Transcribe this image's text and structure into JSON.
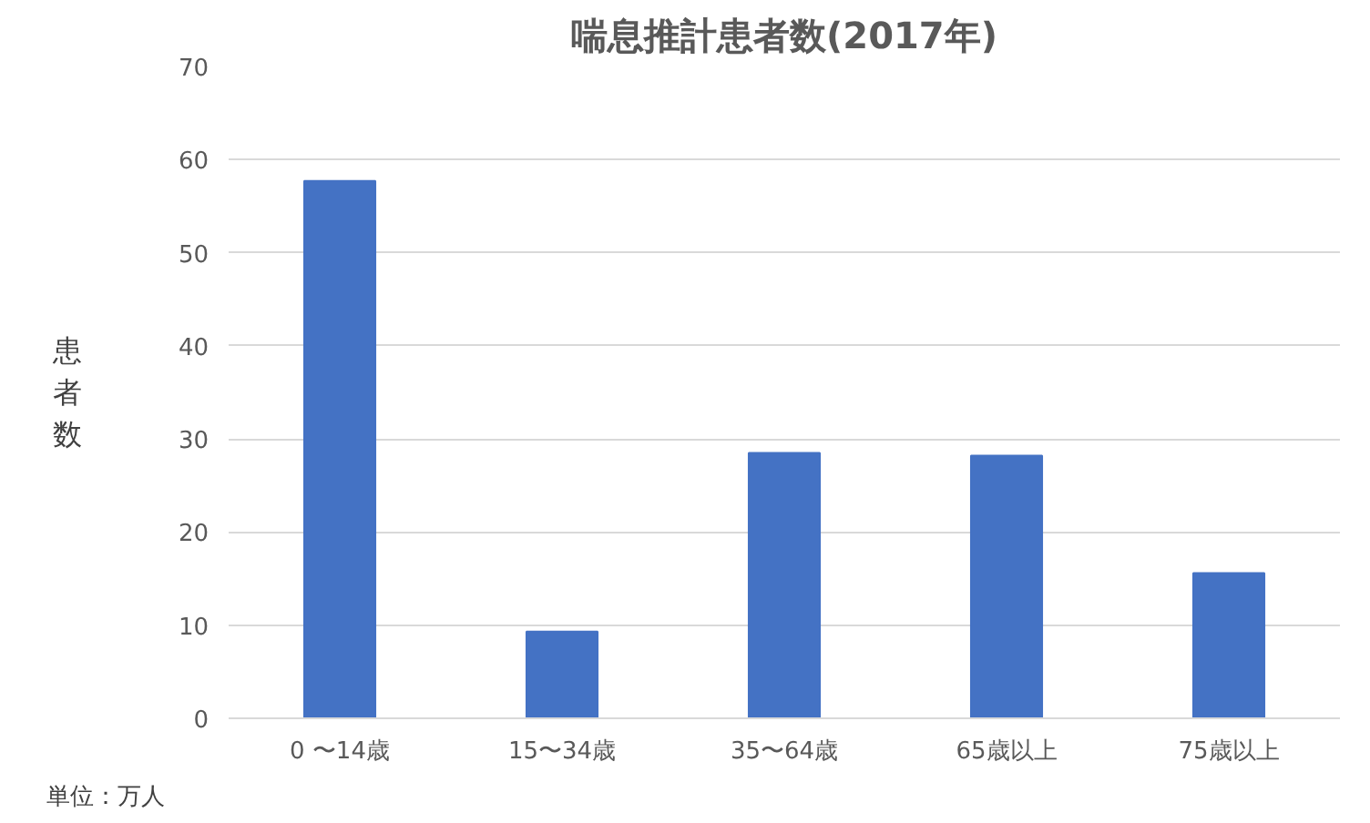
{
  "chart_data": {
    "type": "bar",
    "title": "喘息推計患者数(2017年)",
    "ylabel": "患者数",
    "categories": [
      "0 〜14歳",
      "15〜34歳",
      "35〜64歳",
      "65歳以上",
      "75歳以上"
    ],
    "values": [
      57.7,
      9.3,
      28.5,
      28.2,
      15.6
    ],
    "color": "#4472c4",
    "ylim": [
      0,
      70
    ],
    "yticks": [
      0,
      10,
      20,
      30,
      40,
      50,
      60,
      70
    ],
    "grid": "y",
    "annotations": [
      "単位：万人"
    ]
  }
}
